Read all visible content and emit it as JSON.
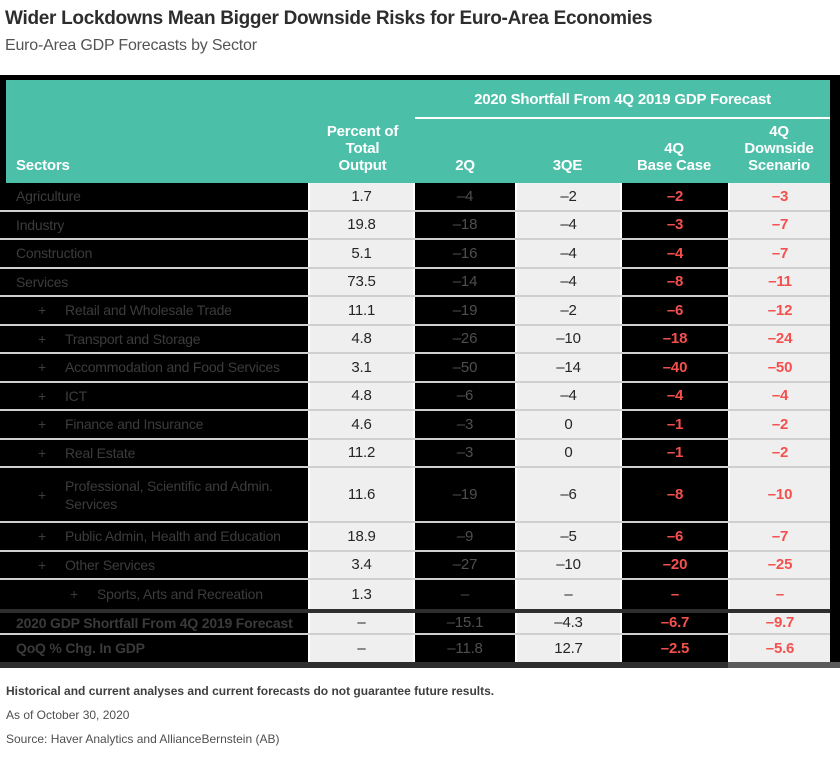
{
  "page": {
    "title": "Wider Lockdowns Mean Bigger Downside Risks for Euro-Area Economies",
    "subtitle": "Euro-Area GDP Forecasts by Sector",
    "footnote_bold": "Historical and current analyses and current forecasts do not guarantee future results.",
    "as_of": "As of October 30, 2020",
    "source": "Source: Haver Analytics and AllianceBernstein (AB)"
  },
  "chart_data": {
    "type": "table",
    "title": "Wider Lockdowns Mean Bigger Downside Risks for Euro-Area Economies",
    "subtitle": "Euro-Area GDP Forecasts by Sector",
    "span_header": "2020 Shortfall From 4Q 2019 GDP Forecast",
    "col_sectors": "Sectors",
    "col_percent": "Percent of\nTotal\nOutput",
    "sub_headers": [
      "2Q",
      "3QE",
      "4Q\nBase Case",
      "4Q\nDownside\nScenario"
    ],
    "columns": [
      "Sectors",
      "Percent of Total Output",
      "2Q",
      "3QE",
      "4Q Base Case",
      "4Q Downside Scenario"
    ],
    "indent_marker": "+",
    "rows": [
      {
        "label": "Agriculture",
        "indent": 0,
        "values": [
          "1.7",
          "–4",
          "–2",
          "–2",
          "–3"
        ]
      },
      {
        "label": "Industry",
        "indent": 0,
        "values": [
          "19.8",
          "–18",
          "–4",
          "–3",
          "–7"
        ]
      },
      {
        "label": "Construction",
        "indent": 0,
        "values": [
          "5.1",
          "–16",
          "–4",
          "–4",
          "–7"
        ]
      },
      {
        "label": "Services",
        "indent": 0,
        "values": [
          "73.5",
          "–14",
          "–4",
          "–8",
          "–11"
        ]
      },
      {
        "label": "Retail and Wholesale Trade",
        "indent": 1,
        "values": [
          "11.1",
          "–19",
          "–2",
          "–6",
          "–12"
        ]
      },
      {
        "label": "Transport and Storage",
        "indent": 1,
        "values": [
          "4.8",
          "–26",
          "–10",
          "–18",
          "–24"
        ]
      },
      {
        "label": "Accommodation and Food Services",
        "indent": 1,
        "values": [
          "3.1",
          "–50",
          "–14",
          "–40",
          "–50"
        ]
      },
      {
        "label": "ICT",
        "indent": 1,
        "values": [
          "4.8",
          "–6",
          "–4",
          "–4",
          "–4"
        ]
      },
      {
        "label": "Finance and Insurance",
        "indent": 1,
        "values": [
          "4.6",
          "–3",
          "0",
          "–1",
          "–2"
        ]
      },
      {
        "label": "Real Estate",
        "indent": 1,
        "values": [
          "11.2",
          "–3",
          "0",
          "–1",
          "–2"
        ]
      },
      {
        "label": "Professional, Scientific and Admin. Services",
        "indent": 1,
        "wrap": true,
        "values": [
          "11.6",
          "–19",
          "–6",
          "–8",
          "–10"
        ]
      },
      {
        "label": "Public Admin, Health and Education",
        "indent": 1,
        "values": [
          "18.9",
          "–9",
          "–5",
          "–6",
          "–7"
        ]
      },
      {
        "label": "Other Services",
        "indent": 1,
        "values": [
          "3.4",
          "–27",
          "–10",
          "–20",
          "–25"
        ]
      },
      {
        "label": "Sports, Arts and Recreation",
        "indent": 2,
        "values": [
          "1.3",
          "–",
          "–",
          "–",
          "–"
        ]
      }
    ],
    "summary_rows": [
      {
        "label": "2020 GDP Shortfall From 4Q 2019 Forecast",
        "values": [
          "–",
          "–15.1",
          "–4.3",
          "–6.7",
          "–9.7"
        ]
      },
      {
        "label": "QoQ % Chg. In GDP",
        "values": [
          "–",
          "–11.8",
          "12.7",
          "–2.5",
          "–5.6"
        ]
      }
    ]
  },
  "colors": {
    "teal_header": "#4cbfa9",
    "negative_red": "#f4504e",
    "light_cell": "#efefef",
    "dark_cell": "#000000",
    "row_separator": "#cfcfcf"
  }
}
